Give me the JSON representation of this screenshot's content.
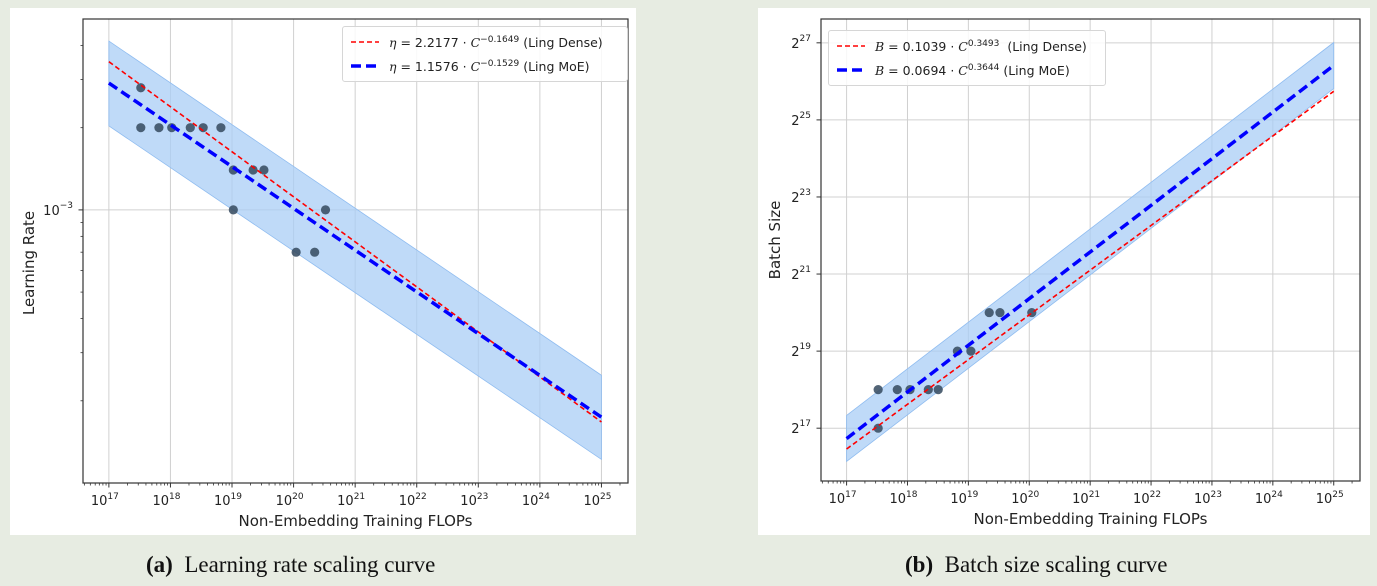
{
  "colors": {
    "background": "#e7ece2",
    "dense": "#ff0000",
    "moe": "#0000ff",
    "band": "#a9cdf5",
    "points": "#34495e"
  },
  "chart_data": [
    {
      "id": "a",
      "type": "scatter",
      "caption_tag": "(a)",
      "caption": "Learning rate scaling curve",
      "xlabel": "Non-Embedding Training FLOPs",
      "ylabel": "Learning Rate",
      "xscale": "log",
      "yscale": "log",
      "xlim": [
        3.8e+16,
        2.7e+25
      ],
      "ylim": [
        0.0001,
        0.005
      ],
      "grid": true,
      "legend_position": "top-right",
      "xticks": [
        {
          "value": 1e+17,
          "base": "10",
          "exp": "17"
        },
        {
          "value": 1e+18,
          "base": "10",
          "exp": "18"
        },
        {
          "value": 1e+19,
          "base": "10",
          "exp": "19"
        },
        {
          "value": 1e+20,
          "base": "10",
          "exp": "20"
        },
        {
          "value": 1e+21,
          "base": "10",
          "exp": "21"
        },
        {
          "value": 1e+22,
          "base": "10",
          "exp": "22"
        },
        {
          "value": 1e+23,
          "base": "10",
          "exp": "23"
        },
        {
          "value": 1e+24,
          "base": "10",
          "exp": "24"
        },
        {
          "value": 1e+25,
          "base": "10",
          "exp": "25"
        }
      ],
      "yticks": [
        {
          "value": 0.001,
          "base": "10",
          "exp": "−3"
        }
      ],
      "points": [
        [
          3.3e+17,
          0.0028
        ],
        [
          3.3e+17,
          0.002
        ],
        [
          6.5e+17,
          0.002
        ],
        [
          1.05e+18,
          0.002
        ],
        [
          2.1e+18,
          0.002
        ],
        [
          3.4e+18,
          0.002
        ],
        [
          6.6e+18,
          0.002
        ],
        [
          1.05e+19,
          0.0014
        ],
        [
          2.2e+19,
          0.0014
        ],
        [
          3.3e+19,
          0.0014
        ],
        [
          1.05e+19,
          0.001
        ],
        [
          3.3e+20,
          0.001
        ],
        [
          1.1e+20,
          0.0007
        ],
        [
          2.2e+20,
          0.0007
        ]
      ],
      "band": {
        "x": [
          1e+17,
          1e+25
        ],
        "lower": [
          0.00203,
          0.000122
        ],
        "upper": [
          0.00415,
          0.000248
        ]
      },
      "series": [
        {
          "name": "(Ling Dense)",
          "symbol": "η",
          "coef": "2.2177",
          "exponent": "−0.1649",
          "style": "dense",
          "x_range": [
            1e+17,
            1e+25
          ]
        },
        {
          "name": "(Ling MoE)",
          "symbol": "η",
          "coef": "1.1576",
          "exponent": "−0.1529",
          "style": "moe",
          "x_range": [
            1e+17,
            1e+25
          ]
        }
      ]
    },
    {
      "id": "b",
      "type": "scatter",
      "caption_tag": "(b)",
      "caption": "Batch size scaling curve",
      "xlabel": "Non-Embedding Training FLOPs",
      "ylabel": "Batch Size",
      "xscale": "log",
      "yscale": "log2",
      "xlim": [
        3.8e+16,
        2.7e+25
      ],
      "ylim": [
        50700,
        206000000
      ],
      "grid": true,
      "legend_position": "top-left",
      "xticks": [
        {
          "value": 1e+17,
          "base": "10",
          "exp": "17"
        },
        {
          "value": 1e+18,
          "base": "10",
          "exp": "18"
        },
        {
          "value": 1e+19,
          "base": "10",
          "exp": "19"
        },
        {
          "value": 1e+20,
          "base": "10",
          "exp": "20"
        },
        {
          "value": 1e+21,
          "base": "10",
          "exp": "21"
        },
        {
          "value": 1e+22,
          "base": "10",
          "exp": "22"
        },
        {
          "value": 1e+23,
          "base": "10",
          "exp": "23"
        },
        {
          "value": 1e+24,
          "base": "10",
          "exp": "24"
        },
        {
          "value": 1e+25,
          "base": "10",
          "exp": "25"
        }
      ],
      "yticks": [
        {
          "value": 131072,
          "base": "2",
          "exp": "17"
        },
        {
          "value": 524288,
          "base": "2",
          "exp": "19"
        },
        {
          "value": 2097152,
          "base": "2",
          "exp": "21"
        },
        {
          "value": 8388608,
          "base": "2",
          "exp": "23"
        },
        {
          "value": 33554432,
          "base": "2",
          "exp": "25"
        },
        {
          "value": 134217728,
          "base": "2",
          "exp": "27"
        }
      ],
      "points": [
        [
          3.3e+17,
          262144
        ],
        [
          3.3e+17,
          131072
        ],
        [
          6.8e+17,
          262144
        ],
        [
          1.1e+18,
          262144
        ],
        [
          2.2e+18,
          262144
        ],
        [
          3.2e+18,
          262144
        ],
        [
          6.6e+18,
          524288
        ],
        [
          1.1e+19,
          524288
        ],
        [
          2.2e+19,
          1048576
        ],
        [
          3.3e+19,
          1048576
        ],
        [
          1.1e+20,
          1048576
        ]
      ],
      "band": {
        "x": [
          1e+17,
          1e+25
        ],
        "lower": [
          72000,
          59000000
        ],
        "upper": [
          165000,
          135000000
        ]
      },
      "series": [
        {
          "name": "(Ling Dense)",
          "symbol": "B",
          "coef": "0.1039",
          "exponent": "0.3493",
          "style": "dense",
          "x_range": [
            1e+17,
            1e+25
          ]
        },
        {
          "name": "(Ling MoE)",
          "symbol": "B",
          "coef": "0.0694",
          "exponent": "0.3644",
          "style": "moe",
          "x_range": [
            1e+17,
            1e+25
          ]
        }
      ]
    }
  ]
}
